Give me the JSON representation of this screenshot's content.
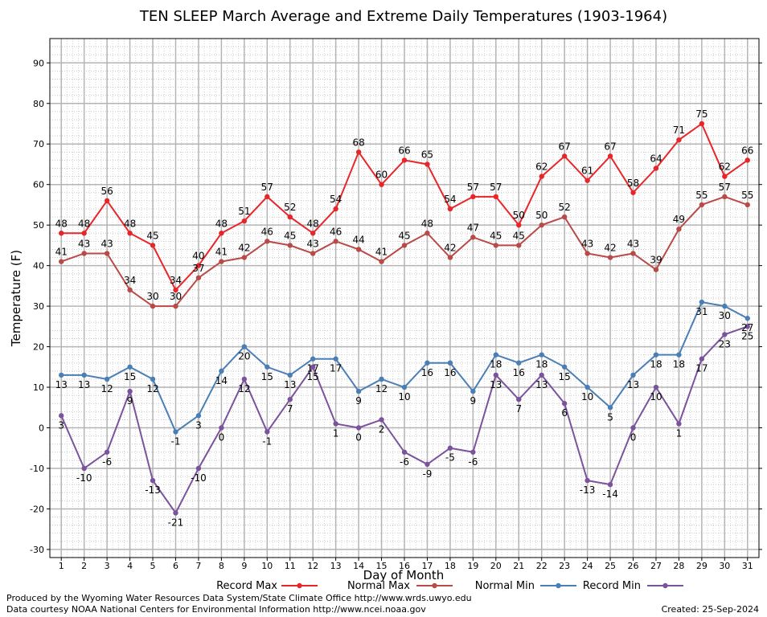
{
  "chart_data": {
    "type": "line",
    "title": "TEN SLEEP March Average and Extreme Daily Temperatures (1903-1964)",
    "xlabel": "Day of Month",
    "ylabel": "Temperature (F)",
    "x": [
      1,
      2,
      3,
      4,
      5,
      6,
      7,
      8,
      9,
      10,
      11,
      12,
      13,
      14,
      15,
      16,
      17,
      18,
      19,
      20,
      21,
      22,
      23,
      24,
      25,
      26,
      27,
      28,
      29,
      30,
      31
    ],
    "xlim": [
      0.5,
      31.5
    ],
    "ylim": [
      -32,
      96
    ],
    "yticks": [
      -30,
      -20,
      -10,
      0,
      10,
      20,
      30,
      40,
      50,
      60,
      70,
      80,
      90
    ],
    "grid": true,
    "legend_position": "bottom",
    "series": [
      {
        "name": "Record Max",
        "color": "#e8262a",
        "values": [
          48,
          48,
          56,
          48,
          45,
          34,
          40,
          48,
          51,
          57,
          52,
          48,
          54,
          68,
          60,
          66,
          65,
          54,
          57,
          57,
          50,
          62,
          67,
          61,
          67,
          58,
          64,
          71,
          75,
          62,
          66
        ]
      },
      {
        "name": "Normal Max",
        "color": "#b94a48",
        "values": [
          41,
          43,
          43,
          34,
          30,
          30,
          37,
          41,
          42,
          46,
          45,
          43,
          46,
          44,
          41,
          45,
          48,
          42,
          47,
          45,
          45,
          50,
          52,
          43,
          42,
          43,
          39,
          49,
          55,
          57,
          55
        ]
      },
      {
        "name": "Normal Min",
        "color": "#4a7fb5",
        "values": [
          13,
          13,
          12,
          15,
          12,
          -1,
          3,
          14,
          20,
          15,
          13,
          17,
          17,
          9,
          12,
          10,
          16,
          16,
          9,
          18,
          16,
          18,
          15,
          10,
          5,
          13,
          18,
          18,
          31,
          30,
          27
        ]
      },
      {
        "name": "Record Min",
        "color": "#7b529c",
        "values": [
          3,
          -10,
          -6,
          9,
          -13,
          -21,
          -10,
          0,
          12,
          -1,
          7,
          15,
          1,
          0,
          2,
          -6,
          -9,
          -5,
          -6,
          13,
          7,
          13,
          6,
          -13,
          -14,
          0,
          10,
          1,
          17,
          23,
          25
        ]
      }
    ]
  },
  "footer": {
    "produced_by": "Produced by the Wyoming Water Resources Data System/State Climate Office http://www.wrds.uwyo.edu",
    "data_courtesy": "Data courtesy NOAA National Centers for Environmental Information http://www.ncei.noaa.gov",
    "created": "Created:  25-Sep-2024"
  }
}
